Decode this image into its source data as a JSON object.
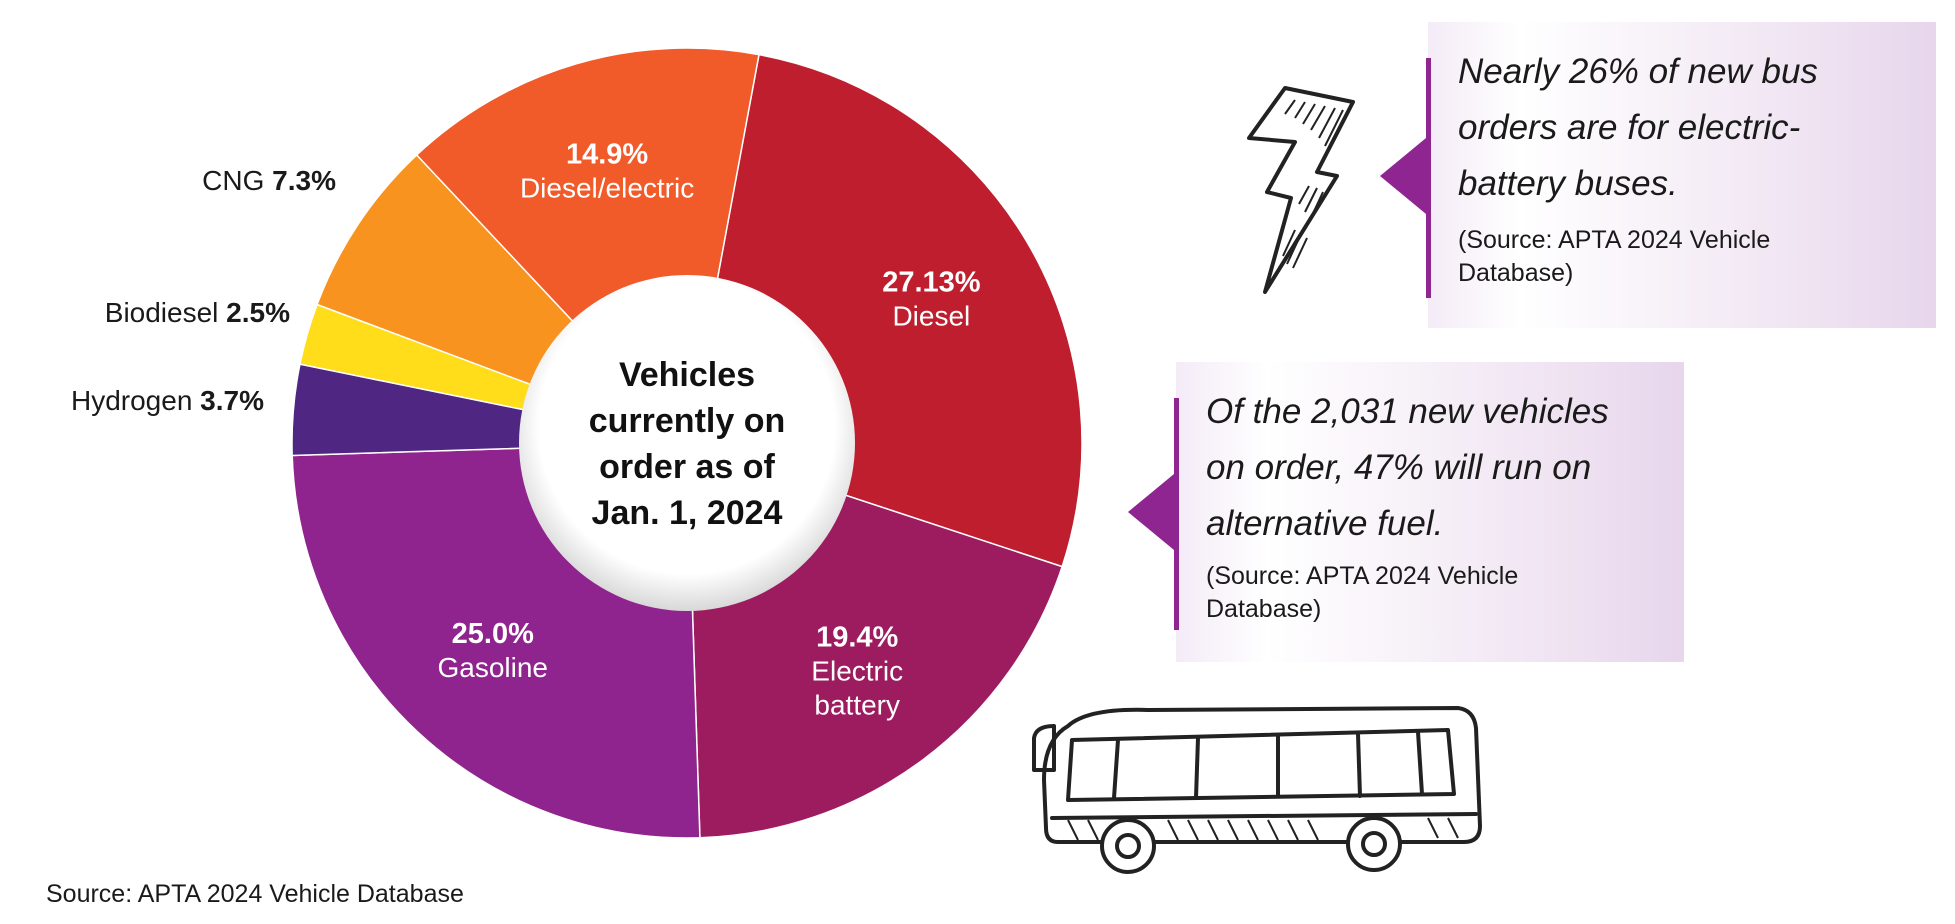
{
  "chart_data": {
    "type": "pie",
    "title": "",
    "center_label": [
      "Vehicles",
      "currently on",
      "order as of",
      "Jan. 1, 2024"
    ],
    "slices": [
      {
        "name": "Diesel",
        "value": 27.13,
        "pct_label": "27.13%",
        "label_lines": [
          "Diesel"
        ],
        "color": "#bf1e2e"
      },
      {
        "name": "Electric battery",
        "value": 19.4,
        "pct_label": "19.4%",
        "label_lines": [
          "Electric",
          "battery"
        ],
        "color": "#9c1c5f"
      },
      {
        "name": "Gasoline",
        "value": 25.0,
        "pct_label": "25.0%",
        "label_lines": [
          "Gasoline"
        ],
        "color": "#8f248e"
      },
      {
        "name": "Hydrogen",
        "value": 3.7,
        "pct_label": "3.7%",
        "label_lines": [
          "Hydrogen"
        ],
        "color": "#4f2782"
      },
      {
        "name": "Biodiesel",
        "value": 2.5,
        "pct_label": "2.5%",
        "label_lines": [
          "Biodiesel"
        ],
        "color": "#ffdd1a"
      },
      {
        "name": "CNG",
        "value": 7.3,
        "pct_label": "7.3%",
        "label_lines": [
          "CNG"
        ],
        "color": "#f7931e"
      },
      {
        "name": "Diesel/electric",
        "value": 14.9,
        "pct_label": "14.9%",
        "label_lines": [
          "Diesel/electric"
        ],
        "color": "#f15a29"
      }
    ]
  },
  "callouts": [
    {
      "quote": "Nearly 26% of new bus\norders are for electric-\nbattery buses.",
      "source": "(Source: APTA 2024 Vehicle\nDatabase)"
    },
    {
      "quote": "Of the 2,031 new vehicles\non order, 47% will run on\nalternative fuel.",
      "source": "(Source: APTA 2024 Vehicle\nDatabase)"
    }
  ],
  "footer": {
    "source": "Source: APTA 2024 Vehicle Database"
  },
  "colors": {
    "accent": "#8e2590",
    "panel": "#ecdff0"
  },
  "icons": {
    "lightning": "lightning-bolt-icon",
    "bus": "bus-icon"
  }
}
